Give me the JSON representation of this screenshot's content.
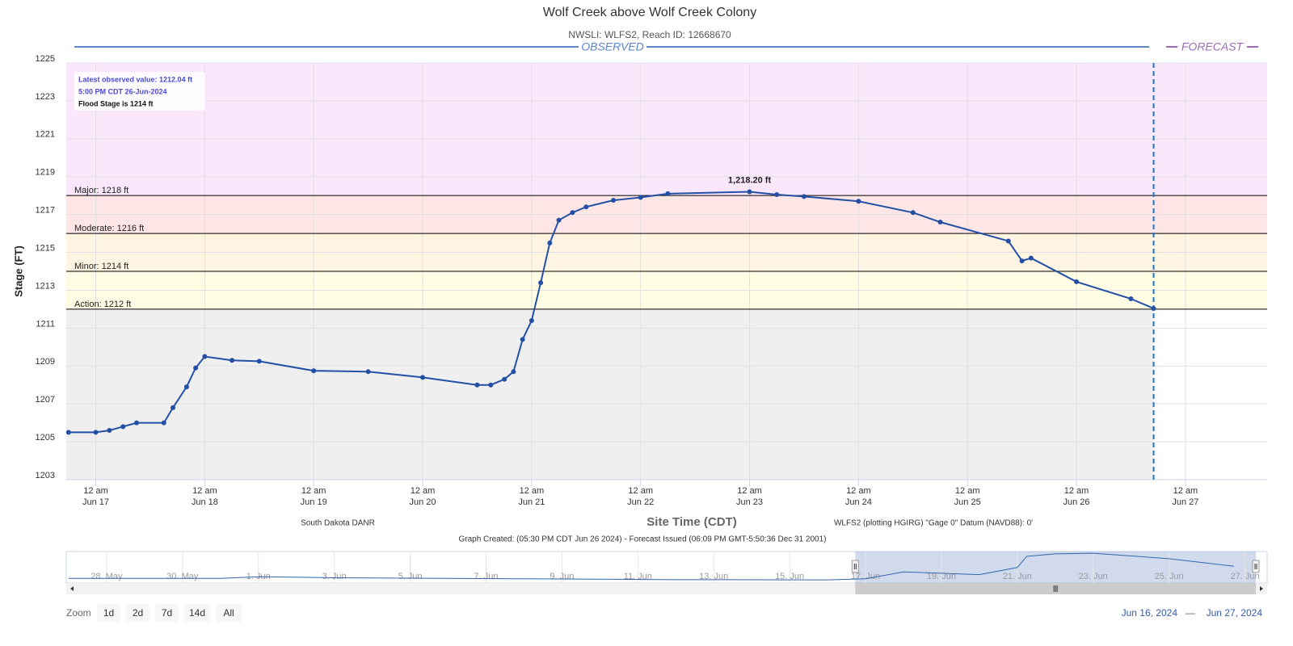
{
  "chart_data": {
    "type": "line",
    "title": "Wolf Creek above Wolf Creek Colony",
    "subtitle": "NWSLI: WLFS2, Reach ID: 12668670",
    "observed_label": "OBSERVED",
    "forecast_label": "FORECAST",
    "y_label": "Stage (FT)",
    "x_label": "Site Time (CDT)",
    "xlim": [
      "2024-06-16 17:30",
      "2024-06-27 18:00"
    ],
    "ylim": [
      1203,
      1225
    ],
    "yticks": [
      1203,
      1205,
      1207,
      1209,
      1211,
      1213,
      1215,
      1217,
      1219,
      1221,
      1223,
      1225
    ],
    "xticks": [
      {
        "value": "2024-06-17 00:00",
        "label": [
          "12 am",
          "Jun 17"
        ]
      },
      {
        "value": "2024-06-18 00:00",
        "label": [
          "12 am",
          "Jun 18"
        ]
      },
      {
        "value": "2024-06-19 00:00",
        "label": [
          "12 am",
          "Jun 19"
        ]
      },
      {
        "value": "2024-06-20 00:00",
        "label": [
          "12 am",
          "Jun 20"
        ]
      },
      {
        "value": "2024-06-21 00:00",
        "label": [
          "12 am",
          "Jun 21"
        ]
      },
      {
        "value": "2024-06-22 00:00",
        "label": [
          "12 am",
          "Jun 22"
        ]
      },
      {
        "value": "2024-06-23 00:00",
        "label": [
          "12 am",
          "Jun 23"
        ]
      },
      {
        "value": "2024-06-24 00:00",
        "label": [
          "12 am",
          "Jun 24"
        ]
      },
      {
        "value": "2024-06-25 00:00",
        "label": [
          "12 am",
          "Jun 25"
        ]
      },
      {
        "value": "2024-06-26 00:00",
        "label": [
          "12 am",
          "Jun 26"
        ]
      },
      {
        "value": "2024-06-27 00:00",
        "label": [
          "12 am",
          "Jun 27"
        ]
      }
    ],
    "grid": true,
    "forecast_start": "2024-06-26 17:00",
    "observed_background": "#efefef",
    "plot_bands": [
      {
        "label": "Action: 1212 ft",
        "value": 1212,
        "color": "#fffde4"
      },
      {
        "label": "Minor: 1214 ft",
        "value": 1214,
        "color": "#fff4e1"
      },
      {
        "label": "Moderate: 1216 ft",
        "value": 1216,
        "color": "#ffe6e6"
      },
      {
        "label": "Major: 1218 ft",
        "value": 1218,
        "color": "#fbe7fb"
      }
    ],
    "info_box": [
      "Latest observed value: 1212.04 ft",
      "5:00 PM CDT 26-Jun-2024",
      "Flood Stage is 1214 ft"
    ],
    "series": [
      {
        "name": "Observed",
        "color": "#2350a5",
        "x": [
          "2024-06-16 18:00",
          "2024-06-17 00:00",
          "2024-06-17 03:00",
          "2024-06-17 06:00",
          "2024-06-17 09:00",
          "2024-06-17 15:00",
          "2024-06-17 17:00",
          "2024-06-17 20:00",
          "2024-06-17 22:00",
          "2024-06-18 00:00",
          "2024-06-18 06:00",
          "2024-06-18 12:00",
          "2024-06-19 00:00",
          "2024-06-19 12:00",
          "2024-06-20 00:00",
          "2024-06-20 12:00",
          "2024-06-20 15:00",
          "2024-06-20 18:00",
          "2024-06-20 20:00",
          "2024-06-20 22:00",
          "2024-06-21 00:00",
          "2024-06-21 02:00",
          "2024-06-21 04:00",
          "2024-06-21 06:00",
          "2024-06-21 09:00",
          "2024-06-21 12:00",
          "2024-06-21 18:00",
          "2024-06-22 00:00",
          "2024-06-22 06:00",
          "2024-06-23 00:00",
          "2024-06-23 06:00",
          "2024-06-23 12:00",
          "2024-06-24 00:00",
          "2024-06-24 12:00",
          "2024-06-24 18:00",
          "2024-06-25 09:00",
          "2024-06-25 12:00",
          "2024-06-25 14:00",
          "2024-06-26 00:00",
          "2024-06-26 12:00",
          "2024-06-26 17:00"
        ],
        "values": [
          1205.5,
          1205.5,
          1205.6,
          1205.8,
          1206.0,
          1206.0,
          1206.8,
          1207.9,
          1208.9,
          1209.5,
          1209.3,
          1209.25,
          1208.75,
          1208.7,
          1208.4,
          1208.0,
          1208.0,
          1208.3,
          1208.7,
          1210.4,
          1211.4,
          1213.4,
          1215.5,
          1216.7,
          1217.1,
          1217.4,
          1217.75,
          1217.9,
          1218.1,
          1218.2,
          1218.05,
          1217.95,
          1217.7,
          1217.1,
          1216.6,
          1215.6,
          1214.55,
          1214.7,
          1213.45,
          1212.55,
          1212.04
        ],
        "value_labels": [
          null,
          null,
          null,
          null,
          null,
          null,
          null,
          null,
          null,
          null,
          null,
          null,
          null,
          null,
          null,
          null,
          null,
          null,
          null,
          null,
          null,
          null,
          null,
          null,
          null,
          null,
          null,
          null,
          null,
          "1,218.20 ft",
          null,
          null,
          null,
          null,
          null,
          null,
          null,
          null,
          null,
          null,
          null
        ]
      }
    ],
    "footer_left": "South Dakota DANR",
    "footer_right": "WLFS2 (plotting HGIRG) \"Gage 0\" Datum (NAVD88): 0'",
    "footer_center": "Graph Created: (05:30 PM CDT Jun 26 2024) - Forecast Issued (06:09 PM GMT-5:50:36 Dec 31 2001)",
    "navigator": {
      "xlim": [
        "2024-05-26 22:30",
        "2024-06-27 14:00"
      ],
      "ylim": [
        1204,
        1219
      ],
      "xticks": [
        {
          "value": "2024-05-28 00:00",
          "label": "28. May"
        },
        {
          "value": "2024-05-30 00:00",
          "label": "30. May"
        },
        {
          "value": "2024-06-01 00:00",
          "label": "1. Jun"
        },
        {
          "value": "2024-06-03 00:00",
          "label": "3. Jun"
        },
        {
          "value": "2024-06-05 00:00",
          "label": "5. Jun"
        },
        {
          "value": "2024-06-07 00:00",
          "label": "7. Jun"
        },
        {
          "value": "2024-06-09 00:00",
          "label": "9. Jun"
        },
        {
          "value": "2024-06-11 00:00",
          "label": "11. Jun"
        },
        {
          "value": "2024-06-13 00:00",
          "label": "13. Jun"
        },
        {
          "value": "2024-06-15 00:00",
          "label": "15. Jun"
        },
        {
          "value": "2024-06-17 00:00",
          "label": "17. Jun"
        },
        {
          "value": "2024-06-19 00:00",
          "label": "19. Jun"
        },
        {
          "value": "2024-06-21 00:00",
          "label": "21. Jun"
        },
        {
          "value": "2024-06-23 00:00",
          "label": "23. Jun"
        },
        {
          "value": "2024-06-25 00:00",
          "label": "25. Jun"
        },
        {
          "value": "2024-06-27 00:00",
          "label": "27. Jun"
        }
      ],
      "x": [
        "2024-05-27 00:00",
        "2024-05-31 00:00",
        "2024-06-01 00:00",
        "2024-06-03 00:00",
        "2024-06-08 00:00",
        "2024-06-12 00:00",
        "2024-06-16 00:00",
        "2024-06-17 00:00",
        "2024-06-18 00:00",
        "2024-06-20 00:00",
        "2024-06-21 00:00",
        "2024-06-21 06:00",
        "2024-06-22 00:00",
        "2024-06-23 00:00",
        "2024-06-25 00:00",
        "2024-06-26 17:00"
      ],
      "values": [
        1206.2,
        1206.2,
        1207.0,
        1206.5,
        1206.0,
        1205.6,
        1205.5,
        1206.0,
        1209.3,
        1208.0,
        1211.4,
        1216.7,
        1217.9,
        1218.2,
        1215.6,
        1212.0
      ]
    },
    "zoom_label": "Zoom",
    "zoom_buttons": [
      "1d",
      "2d",
      "7d",
      "14d",
      "All"
    ],
    "range_from": "Jun 16, 2024",
    "range_separator": "—",
    "range_to": "Jun 27, 2024"
  }
}
